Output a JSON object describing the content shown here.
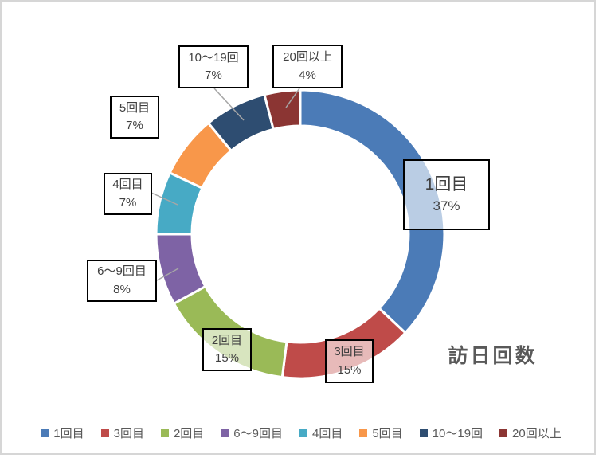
{
  "chart_data": {
    "type": "pie",
    "subtype": "donut",
    "title": "訪日回数",
    "start_angle_deg": 0,
    "direction": "clockwise",
    "hole_ratio": 0.75,
    "legend_position": "bottom",
    "slices": [
      {
        "label": "1回目",
        "value": 37,
        "color": "#4B7BB7"
      },
      {
        "label": "3回目",
        "value": 15,
        "color": "#BF4B49"
      },
      {
        "label": "2回目",
        "value": 15,
        "color": "#9ABA57"
      },
      {
        "label": "6〜9回目",
        "value": 8,
        "color": "#7E63A5"
      },
      {
        "label": "4回目",
        "value": 7,
        "color": "#47AAC5"
      },
      {
        "label": "5回目",
        "value": 7,
        "color": "#F8974A"
      },
      {
        "label": "10〜19回",
        "value": 7,
        "color": "#2E4D71"
      },
      {
        "label": "20回以上",
        "value": 4,
        "color": "#8B3533"
      }
    ]
  },
  "data_labels": [
    {
      "text": "1回目",
      "pct": "37%"
    },
    {
      "text": "3回目",
      "pct": "15%"
    },
    {
      "text": "2回目",
      "pct": "15%"
    },
    {
      "text": "6〜9回目",
      "pct": "8%"
    },
    {
      "text": "4回目",
      "pct": "7%"
    },
    {
      "text": "5回目",
      "pct": "7%"
    },
    {
      "text": "10〜19回",
      "pct": "7%"
    },
    {
      "text": "20回以上",
      "pct": "4%"
    }
  ],
  "legend": {
    "items": [
      {
        "label": "1回目"
      },
      {
        "label": "3回目"
      },
      {
        "label": "2回目"
      },
      {
        "label": "6〜9回目"
      },
      {
        "label": "4回目"
      },
      {
        "label": "5回目"
      },
      {
        "label": "10〜19回"
      },
      {
        "label": "20回以上"
      }
    ]
  },
  "colors": {
    "label_text": "#404040",
    "title_text": "#595959",
    "leader_line": "#A6A6A6",
    "slice_gap": "#FFFFFF",
    "frame_border": "#D6D6D6"
  }
}
